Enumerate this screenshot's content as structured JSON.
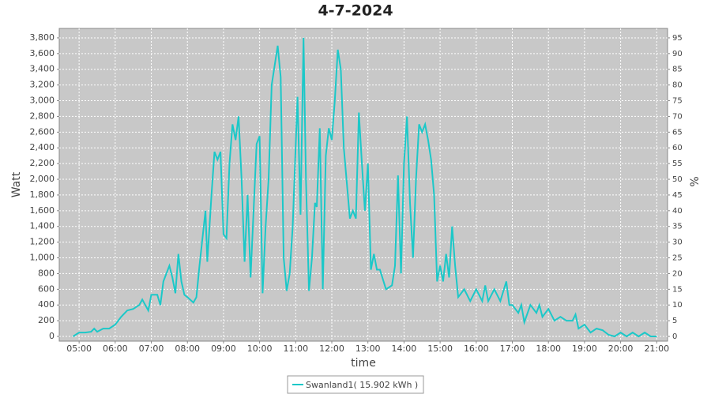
{
  "chart_data": {
    "type": "line",
    "title": "4-7-2024",
    "x_label": "time",
    "y_label": "Watt",
    "y2_label": "%",
    "xlim": [
      "04:27",
      "21:18"
    ],
    "xticks": [
      "05:00",
      "06:00",
      "07:00",
      "08:00",
      "09:00",
      "10:00",
      "11:00",
      "12:00",
      "13:00",
      "14:00",
      "15:00",
      "16:00",
      "17:00",
      "18:00",
      "19:00",
      "20:00",
      "21:00"
    ],
    "ylim": [
      -60,
      3920
    ],
    "yticks": [
      0,
      200,
      400,
      600,
      800,
      {
        "value": 1000,
        "label": "1,000"
      },
      {
        "value": 1200,
        "label": "1,200"
      },
      {
        "value": 1400,
        "label": "1,400"
      },
      {
        "value": 1600,
        "label": "1,600"
      },
      {
        "value": 1800,
        "label": "1,800"
      },
      {
        "value": 2000,
        "label": "2,000"
      },
      {
        "value": 2200,
        "label": "2,200"
      },
      {
        "value": 2400,
        "label": "2,400"
      },
      {
        "value": 2600,
        "label": "2,600"
      },
      {
        "value": 2800,
        "label": "2,800"
      },
      {
        "value": 3000,
        "label": "3,000"
      },
      {
        "value": 3200,
        "label": "3,200"
      },
      {
        "value": 3400,
        "label": "3,400"
      },
      {
        "value": 3600,
        "label": "3,600"
      },
      {
        "value": 3800,
        "label": "3,800"
      }
    ],
    "y2lim": [
      -1.5,
      98
    ],
    "y2ticks": [
      0,
      5,
      10,
      15,
      20,
      25,
      30,
      35,
      40,
      45,
      50,
      55,
      60,
      65,
      70,
      75,
      80,
      85,
      90,
      95
    ],
    "grid": true,
    "legend": "bottom",
    "x": [
      "04:50",
      "05:00",
      "05:10",
      "05:20",
      "05:25",
      "05:30",
      "05:40",
      "05:50",
      "06:00",
      "06:10",
      "06:20",
      "06:30",
      "06:40",
      "06:45",
      "06:50",
      "06:55",
      "07:00",
      "07:10",
      "07:15",
      "07:20",
      "07:30",
      "07:35",
      "07:40",
      "07:45",
      "07:50",
      "07:55",
      "08:00",
      "08:10",
      "08:15",
      "08:20",
      "08:30",
      "08:33",
      "08:40",
      "08:45",
      "08:50",
      "08:55",
      "09:00",
      "09:05",
      "09:10",
      "09:15",
      "09:20",
      "09:25",
      "09:30",
      "09:35",
      "09:40",
      "09:45",
      "09:50",
      "09:55",
      "10:00",
      "10:05",
      "10:10",
      "10:15",
      "10:20",
      "10:30",
      "10:35",
      "10:40",
      "10:45",
      "10:50",
      "10:55",
      "11:03",
      "11:08",
      "11:13",
      "11:17",
      "11:22",
      "11:27",
      "11:32",
      "11:35",
      "11:40",
      "11:45",
      "11:50",
      "11:55",
      "12:00",
      "12:05",
      "12:10",
      "12:15",
      "12:20",
      "12:30",
      "12:35",
      "12:40",
      "12:45",
      "12:50",
      "12:55",
      "13:00",
      "13:05",
      "13:10",
      "13:15",
      "13:20",
      "13:30",
      "13:40",
      "13:45",
      "13:50",
      "13:55",
      "14:00",
      "14:05",
      "14:10",
      "14:15",
      "14:20",
      "14:25",
      "14:30",
      "14:35",
      "14:40",
      "14:45",
      "14:50",
      "14:55",
      "15:00",
      "15:05",
      "15:10",
      "15:15",
      "15:20",
      "15:25",
      "15:30",
      "15:40",
      "15:50",
      "16:00",
      "16:10",
      "16:15",
      "16:20",
      "16:30",
      "16:40",
      "16:50",
      "16:55",
      "17:00",
      "17:10",
      "17:15",
      "17:20",
      "17:30",
      "17:40",
      "17:45",
      "17:50",
      "18:00",
      "18:10",
      "18:20",
      "18:30",
      "18:40",
      "18:45",
      "18:50",
      "19:00",
      "19:10",
      "19:20",
      "19:30",
      "19:40",
      "19:50",
      "20:00",
      "20:10",
      "20:20",
      "20:30",
      "20:40",
      "20:50",
      "21:00"
    ],
    "series": [
      {
        "name": "Swanland1( 15.902 kWh )",
        "color": "#1cc8c8",
        "values": [
          0,
          50,
          50,
          60,
          100,
          60,
          100,
          100,
          150,
          250,
          330,
          350,
          400,
          470,
          400,
          330,
          530,
          530,
          400,
          700,
          900,
          750,
          550,
          1050,
          700,
          530,
          500,
          430,
          500,
          900,
          1600,
          950,
          1800,
          2350,
          2250,
          2350,
          1300,
          1250,
          2200,
          2700,
          2500,
          2800,
          2000,
          950,
          1800,
          750,
          1600,
          2450,
          2550,
          550,
          1400,
          2000,
          3200,
          3700,
          3300,
          1000,
          580,
          800,
          1400,
          3050,
          1550,
          3800,
          2000,
          580,
          1000,
          1700,
          1650,
          2650,
          600,
          2300,
          2650,
          2500,
          3000,
          3650,
          3400,
          2400,
          1500,
          1600,
          1500,
          2850,
          2200,
          1600,
          2200,
          850,
          1050,
          850,
          850,
          600,
          650,
          900,
          2050,
          800,
          2200,
          2800,
          1700,
          1000,
          2000,
          2700,
          2600,
          2700,
          2500,
          2250,
          1800,
          700,
          900,
          700,
          1050,
          750,
          1400,
          900,
          500,
          600,
          450,
          600,
          450,
          650,
          450,
          600,
          450,
          700,
          400,
          400,
          300,
          400,
          180,
          400,
          300,
          400,
          250,
          350,
          200,
          250,
          200,
          200,
          280,
          100,
          150,
          50,
          100,
          80,
          20,
          0,
          50,
          0,
          50,
          0,
          50,
          0,
          0
        ]
      }
    ]
  }
}
